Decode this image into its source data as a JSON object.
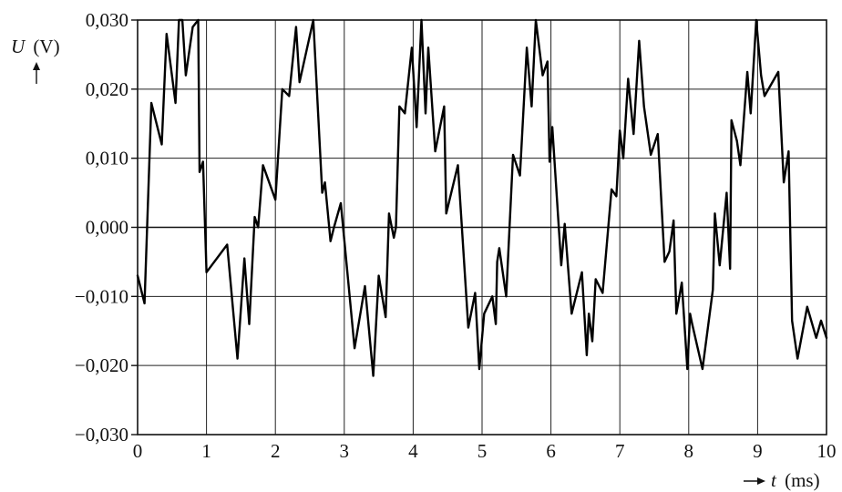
{
  "chart_data": {
    "type": "line",
    "title": "",
    "xlabel_var": "t",
    "xlabel_unit": "(ms)",
    "ylabel_var": "U",
    "ylabel_unit": "(V)",
    "xlim": [
      0,
      10
    ],
    "ylim": [
      -0.03,
      0.03
    ],
    "x_ticks": [
      0,
      1,
      2,
      3,
      4,
      5,
      6,
      7,
      8,
      9,
      10
    ],
    "x_tick_labels": [
      "0",
      "1",
      "2",
      "3",
      "4",
      "5",
      "6",
      "7",
      "8",
      "9",
      "10"
    ],
    "y_ticks": [
      0.03,
      0.02,
      0.01,
      0.0,
      -0.01,
      -0.02,
      -0.03
    ],
    "y_tick_labels": [
      "0,030",
      "0,020",
      "0,010",
      "0,000",
      "−0,010",
      "−0,020",
      "−0,030"
    ],
    "grid": true,
    "series": [
      {
        "color": "#000000",
        "x": [
          0,
          0.1,
          0.2,
          0.35,
          0.42,
          0.55,
          0.6,
          0.65,
          0.7,
          0.8,
          0.88,
          0.9,
          0.95,
          1.0,
          1.3,
          1.45,
          1.55,
          1.62,
          1.7,
          1.75,
          1.82,
          2.0,
          2.1,
          2.2,
          2.3,
          2.35,
          2.55,
          2.68,
          2.72,
          2.8,
          2.85,
          2.95,
          3.15,
          3.3,
          3.42,
          3.5,
          3.6,
          3.65,
          3.72,
          3.75,
          3.8,
          3.88,
          3.98,
          4.05,
          4.12,
          4.18,
          4.22,
          4.32,
          4.45,
          4.48,
          4.65,
          4.8,
          4.9,
          4.96,
          5.03,
          5.15,
          5.2,
          5.22,
          5.25,
          5.35,
          5.45,
          5.55,
          5.65,
          5.72,
          5.78,
          5.88,
          5.95,
          5.98,
          6.02,
          6.15,
          6.2,
          6.3,
          6.45,
          6.52,
          6.55,
          6.6,
          6.65,
          6.75,
          6.88,
          6.95,
          7.0,
          7.05,
          7.12,
          7.2,
          7.28,
          7.35,
          7.45,
          7.55,
          7.65,
          7.72,
          7.78,
          7.82,
          7.9,
          7.98,
          8.02,
          8.05,
          8.2,
          8.35,
          8.38,
          8.45,
          8.55,
          8.6,
          8.62,
          8.7,
          8.75,
          8.85,
          8.9,
          8.98,
          9.05,
          9.1,
          9.3,
          9.38,
          9.45,
          9.5,
          9.58,
          9.72,
          9.85,
          9.92,
          10.0
        ],
        "y": [
          -0.007,
          -0.011,
          0.018,
          0.012,
          0.028,
          0.018,
          0.032,
          0.03,
          0.022,
          0.029,
          0.032,
          0.008,
          0.0095,
          -0.0065,
          -0.0025,
          -0.019,
          -0.0045,
          -0.014,
          0.0015,
          0.0,
          0.009,
          0.004,
          0.02,
          0.019,
          0.029,
          0.021,
          0.031,
          0.005,
          0.0065,
          -0.002,
          0.0,
          0.0035,
          -0.0175,
          -0.0085,
          -0.0215,
          -0.007,
          -0.013,
          0.002,
          -0.0015,
          0.0,
          0.0175,
          0.0165,
          0.026,
          0.0145,
          0.03,
          0.0165,
          0.026,
          0.011,
          0.0175,
          0.002,
          0.009,
          -0.0145,
          -0.0095,
          -0.0205,
          -0.0125,
          -0.01,
          -0.014,
          -0.005,
          -0.003,
          -0.01,
          0.0105,
          0.0075,
          0.026,
          0.0175,
          0.03,
          0.022,
          0.024,
          0.0095,
          0.0145,
          -0.0055,
          0.0005,
          -0.0125,
          -0.0065,
          -0.0185,
          -0.0125,
          -0.0165,
          -0.0075,
          -0.0095,
          0.0055,
          0.0045,
          0.014,
          0.01,
          0.0215,
          0.0135,
          0.027,
          0.0175,
          0.0105,
          0.0135,
          -0.005,
          -0.0035,
          0.001,
          -0.0125,
          -0.008,
          -0.0205,
          -0.0125,
          -0.014,
          -0.0205,
          -0.009,
          0.002,
          -0.0055,
          0.005,
          -0.006,
          0.0155,
          0.0125,
          0.009,
          0.0225,
          0.0165,
          0.03,
          0.022,
          0.019,
          0.0225,
          0.0065,
          0.011,
          -0.0135,
          -0.019,
          -0.0115,
          -0.016,
          -0.0135,
          -0.016
        ]
      }
    ]
  }
}
